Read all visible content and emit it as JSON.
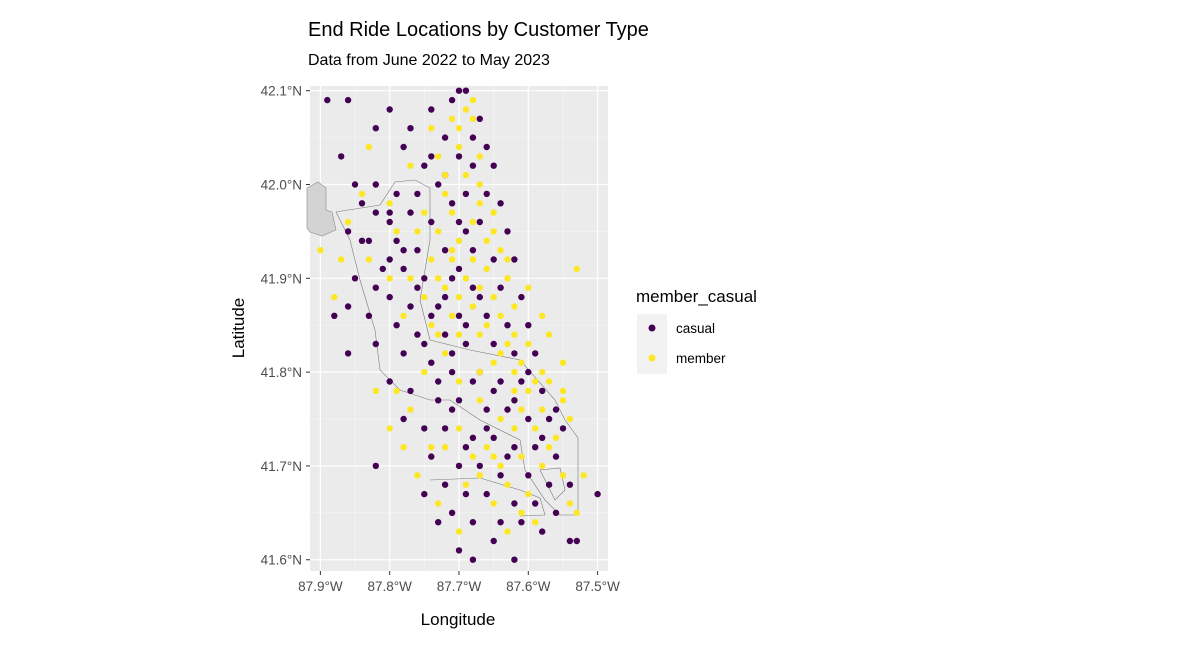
{
  "chart_data": {
    "type": "scatter",
    "title": "End Ride Locations by Customer Type",
    "subtitle": "Data from June 2022 to May 2023",
    "xlabel": "Longitude",
    "ylabel": "Latitude",
    "xlim": [
      87.915,
      87.485
    ],
    "ylim": [
      41.588,
      42.105
    ],
    "x_ticks": [
      87.9,
      87.8,
      87.7,
      87.6,
      87.5
    ],
    "x_tick_labels": [
      "87.9°W",
      "87.8°W",
      "87.7°W",
      "87.6°W",
      "87.5°W"
    ],
    "y_ticks": [
      42.1,
      42.0,
      41.9,
      41.8,
      41.7,
      41.6
    ],
    "y_tick_labels": [
      "42.1°N",
      "42.0°N",
      "41.9°N",
      "41.8°N",
      "41.7°N",
      "41.6°N"
    ],
    "grid": true,
    "panel_background": "#ebebeb",
    "legend": {
      "title": "member_casual",
      "position": "right",
      "entries": [
        {
          "label": "casual",
          "color": "#440154"
        },
        {
          "label": "member",
          "color": "#fde725"
        }
      ]
    },
    "series": [
      {
        "name": "casual",
        "color": "#440154",
        "points": [
          [
            87.89,
            42.09
          ],
          [
            87.86,
            42.09
          ],
          [
            87.8,
            42.08
          ],
          [
            87.74,
            42.08
          ],
          [
            87.71,
            42.09
          ],
          [
            87.69,
            42.1
          ],
          [
            87.82,
            42.06
          ],
          [
            87.77,
            42.06
          ],
          [
            87.72,
            42.05
          ],
          [
            87.68,
            42.05
          ],
          [
            87.66,
            42.04
          ],
          [
            87.78,
            42.04
          ],
          [
            87.74,
            42.03
          ],
          [
            87.7,
            42.03
          ],
          [
            87.87,
            42.03
          ],
          [
            87.72,
            42.01
          ],
          [
            87.68,
            42.02
          ],
          [
            87.65,
            42.02
          ],
          [
            87.85,
            42.0
          ],
          [
            87.82,
            42.0
          ],
          [
            87.79,
            41.99
          ],
          [
            87.76,
            41.99
          ],
          [
            87.73,
            42.0
          ],
          [
            87.69,
            41.99
          ],
          [
            87.66,
            41.99
          ],
          [
            87.64,
            41.98
          ],
          [
            87.84,
            41.98
          ],
          [
            87.8,
            41.97
          ],
          [
            87.77,
            41.97
          ],
          [
            87.74,
            41.96
          ],
          [
            87.7,
            41.96
          ],
          [
            87.67,
            41.96
          ],
          [
            87.63,
            41.95
          ],
          [
            87.86,
            41.95
          ],
          [
            87.83,
            41.94
          ],
          [
            87.79,
            41.94
          ],
          [
            87.76,
            41.93
          ],
          [
            87.72,
            41.93
          ],
          [
            87.68,
            41.93
          ],
          [
            87.65,
            41.92
          ],
          [
            87.62,
            41.92
          ],
          [
            87.81,
            41.91
          ],
          [
            87.78,
            41.91
          ],
          [
            87.75,
            41.9
          ],
          [
            87.71,
            41.9
          ],
          [
            87.68,
            41.89
          ],
          [
            87.64,
            41.89
          ],
          [
            87.61,
            41.88
          ],
          [
            87.85,
            41.9
          ],
          [
            87.8,
            41.88
          ],
          [
            87.77,
            41.87
          ],
          [
            87.73,
            41.87
          ],
          [
            87.7,
            41.86
          ],
          [
            87.66,
            41.86
          ],
          [
            87.63,
            41.85
          ],
          [
            87.6,
            41.85
          ],
          [
            87.86,
            41.87
          ],
          [
            87.83,
            41.86
          ],
          [
            87.79,
            41.85
          ],
          [
            87.76,
            41.84
          ],
          [
            87.72,
            41.84
          ],
          [
            87.69,
            41.83
          ],
          [
            87.65,
            41.83
          ],
          [
            87.62,
            41.82
          ],
          [
            87.59,
            41.82
          ],
          [
            87.88,
            41.86
          ],
          [
            87.86,
            41.82
          ],
          [
            87.82,
            41.83
          ],
          [
            87.78,
            41.82
          ],
          [
            87.74,
            41.81
          ],
          [
            87.71,
            41.8
          ],
          [
            87.67,
            41.8
          ],
          [
            87.64,
            41.79
          ],
          [
            87.61,
            41.79
          ],
          [
            87.58,
            41.78
          ],
          [
            87.8,
            41.79
          ],
          [
            87.77,
            41.78
          ],
          [
            87.73,
            41.77
          ],
          [
            87.7,
            41.77
          ],
          [
            87.66,
            41.76
          ],
          [
            87.63,
            41.76
          ],
          [
            87.6,
            41.75
          ],
          [
            87.57,
            41.75
          ],
          [
            87.55,
            41.74
          ],
          [
            87.78,
            41.75
          ],
          [
            87.75,
            41.74
          ],
          [
            87.72,
            41.74
          ],
          [
            87.68,
            41.73
          ],
          [
            87.65,
            41.73
          ],
          [
            87.62,
            41.72
          ],
          [
            87.59,
            41.72
          ],
          [
            87.56,
            41.71
          ],
          [
            87.82,
            41.7
          ],
          [
            87.74,
            41.71
          ],
          [
            87.7,
            41.7
          ],
          [
            87.67,
            41.7
          ],
          [
            87.64,
            41.69
          ],
          [
            87.6,
            41.69
          ],
          [
            87.57,
            41.68
          ],
          [
            87.54,
            41.68
          ],
          [
            87.5,
            41.67
          ],
          [
            87.72,
            41.68
          ],
          [
            87.69,
            41.67
          ],
          [
            87.66,
            41.67
          ],
          [
            87.62,
            41.66
          ],
          [
            87.59,
            41.66
          ],
          [
            87.56,
            41.65
          ],
          [
            87.71,
            41.65
          ],
          [
            87.68,
            41.64
          ],
          [
            87.64,
            41.64
          ],
          [
            87.61,
            41.64
          ],
          [
            87.58,
            41.63
          ],
          [
            87.54,
            41.62
          ],
          [
            87.53,
            41.62
          ],
          [
            87.7,
            41.61
          ],
          [
            87.68,
            41.6
          ],
          [
            87.62,
            41.6
          ],
          [
            87.65,
            41.62
          ],
          [
            87.73,
            41.64
          ],
          [
            87.75,
            41.67
          ],
          [
            87.7,
            41.91
          ],
          [
            87.72,
            41.88
          ],
          [
            87.69,
            41.85
          ],
          [
            87.71,
            41.82
          ],
          [
            87.68,
            41.79
          ],
          [
            87.66,
            41.74
          ],
          [
            87.69,
            41.72
          ],
          [
            87.71,
            41.76
          ],
          [
            87.73,
            41.79
          ],
          [
            87.75,
            41.83
          ],
          [
            87.67,
            41.88
          ],
          [
            87.69,
            41.95
          ],
          [
            87.71,
            41.98
          ],
          [
            87.75,
            42.02
          ],
          [
            87.67,
            42.07
          ],
          [
            87.7,
            42.1
          ],
          [
            87.62,
            41.77
          ],
          [
            87.6,
            41.8
          ],
          [
            87.58,
            41.73
          ],
          [
            87.56,
            41.76
          ],
          [
            87.63,
            41.71
          ],
          [
            87.65,
            41.78
          ],
          [
            87.74,
            41.86
          ],
          [
            87.76,
            41.89
          ],
          [
            87.78,
            41.93
          ],
          [
            87.8,
            41.96
          ],
          [
            87.82,
            41.97
          ],
          [
            87.84,
            41.94
          ],
          [
            87.8,
            41.92
          ],
          [
            87.82,
            41.89
          ]
        ]
      },
      {
        "name": "member",
        "color": "#fde725",
        "points": [
          [
            87.83,
            42.04
          ],
          [
            87.77,
            42.02
          ],
          [
            87.74,
            42.06
          ],
          [
            87.71,
            42.07
          ],
          [
            87.68,
            42.07
          ],
          [
            87.7,
            42.04
          ],
          [
            87.73,
            42.03
          ],
          [
            87.67,
            42.03
          ],
          [
            87.69,
            42.01
          ],
          [
            87.72,
            41.99
          ],
          [
            87.67,
            42.0
          ],
          [
            87.65,
            41.97
          ],
          [
            87.71,
            41.97
          ],
          [
            87.68,
            41.96
          ],
          [
            87.7,
            41.94
          ],
          [
            87.66,
            41.94
          ],
          [
            87.64,
            41.93
          ],
          [
            87.68,
            41.92
          ],
          [
            87.71,
            41.92
          ],
          [
            87.74,
            41.92
          ],
          [
            87.66,
            41.91
          ],
          [
            87.63,
            41.9
          ],
          [
            87.69,
            41.9
          ],
          [
            87.72,
            41.89
          ],
          [
            87.67,
            41.89
          ],
          [
            87.65,
            41.88
          ],
          [
            87.62,
            41.87
          ],
          [
            87.7,
            41.88
          ],
          [
            87.68,
            41.87
          ],
          [
            87.64,
            41.86
          ],
          [
            87.66,
            41.85
          ],
          [
            87.62,
            41.84
          ],
          [
            87.6,
            41.83
          ],
          [
            87.64,
            41.82
          ],
          [
            87.61,
            41.81
          ],
          [
            87.58,
            41.8
          ],
          [
            87.62,
            41.8
          ],
          [
            87.59,
            41.79
          ],
          [
            87.57,
            41.79
          ],
          [
            87.6,
            41.78
          ],
          [
            87.61,
            41.76
          ],
          [
            87.58,
            41.76
          ],
          [
            87.55,
            41.77
          ],
          [
            87.59,
            41.74
          ],
          [
            87.56,
            41.73
          ],
          [
            87.54,
            41.75
          ],
          [
            87.62,
            41.74
          ],
          [
            87.64,
            41.75
          ],
          [
            87.66,
            41.72
          ],
          [
            87.61,
            41.71
          ],
          [
            87.64,
            41.7
          ],
          [
            87.67,
            41.69
          ],
          [
            87.63,
            41.68
          ],
          [
            87.69,
            41.68
          ],
          [
            87.58,
            41.7
          ],
          [
            87.55,
            41.69
          ],
          [
            87.52,
            41.69
          ],
          [
            87.6,
            41.67
          ],
          [
            87.65,
            41.66
          ],
          [
            87.61,
            41.65
          ],
          [
            87.54,
            41.66
          ],
          [
            87.53,
            41.65
          ],
          [
            87.63,
            41.63
          ],
          [
            87.59,
            41.64
          ],
          [
            87.7,
            41.63
          ],
          [
            87.73,
            41.66
          ],
          [
            87.76,
            41.69
          ],
          [
            87.74,
            41.72
          ],
          [
            87.77,
            41.76
          ],
          [
            87.79,
            41.78
          ],
          [
            87.75,
            41.8
          ],
          [
            87.72,
            41.82
          ],
          [
            87.74,
            41.85
          ],
          [
            87.78,
            41.86
          ],
          [
            87.8,
            41.9
          ],
          [
            87.83,
            41.92
          ],
          [
            87.86,
            41.96
          ],
          [
            87.84,
            41.99
          ],
          [
            87.8,
            41.98
          ],
          [
            87.87,
            41.92
          ],
          [
            87.88,
            41.88
          ],
          [
            87.9,
            41.93
          ],
          [
            87.53,
            41.91
          ],
          [
            87.57,
            41.84
          ],
          [
            87.55,
            41.81
          ],
          [
            87.58,
            41.86
          ],
          [
            87.6,
            41.89
          ],
          [
            87.63,
            41.92
          ],
          [
            87.65,
            41.95
          ],
          [
            87.67,
            41.98
          ],
          [
            87.7,
            42.06
          ],
          [
            87.69,
            42.08
          ],
          [
            87.68,
            42.09
          ],
          [
            87.72,
            42.01
          ],
          [
            87.75,
            41.97
          ],
          [
            87.76,
            41.95
          ],
          [
            87.79,
            41.95
          ],
          [
            87.73,
            41.95
          ],
          [
            87.71,
            41.93
          ],
          [
            87.77,
            41.9
          ],
          [
            87.73,
            41.9
          ],
          [
            87.75,
            41.88
          ],
          [
            87.71,
            41.86
          ],
          [
            87.7,
            41.84
          ],
          [
            87.67,
            41.84
          ],
          [
            87.63,
            41.83
          ],
          [
            87.65,
            41.81
          ],
          [
            87.67,
            41.8
          ],
          [
            87.62,
            41.78
          ],
          [
            87.55,
            41.78
          ],
          [
            87.57,
            41.72
          ],
          [
            87.65,
            41.71
          ],
          [
            87.68,
            41.71
          ],
          [
            87.72,
            41.72
          ],
          [
            87.7,
            41.74
          ],
          [
            87.67,
            41.77
          ],
          [
            87.7,
            41.79
          ],
          [
            87.73,
            41.84
          ],
          [
            87.82,
            41.78
          ],
          [
            87.8,
            41.74
          ],
          [
            87.78,
            41.72
          ]
        ]
      }
    ]
  }
}
